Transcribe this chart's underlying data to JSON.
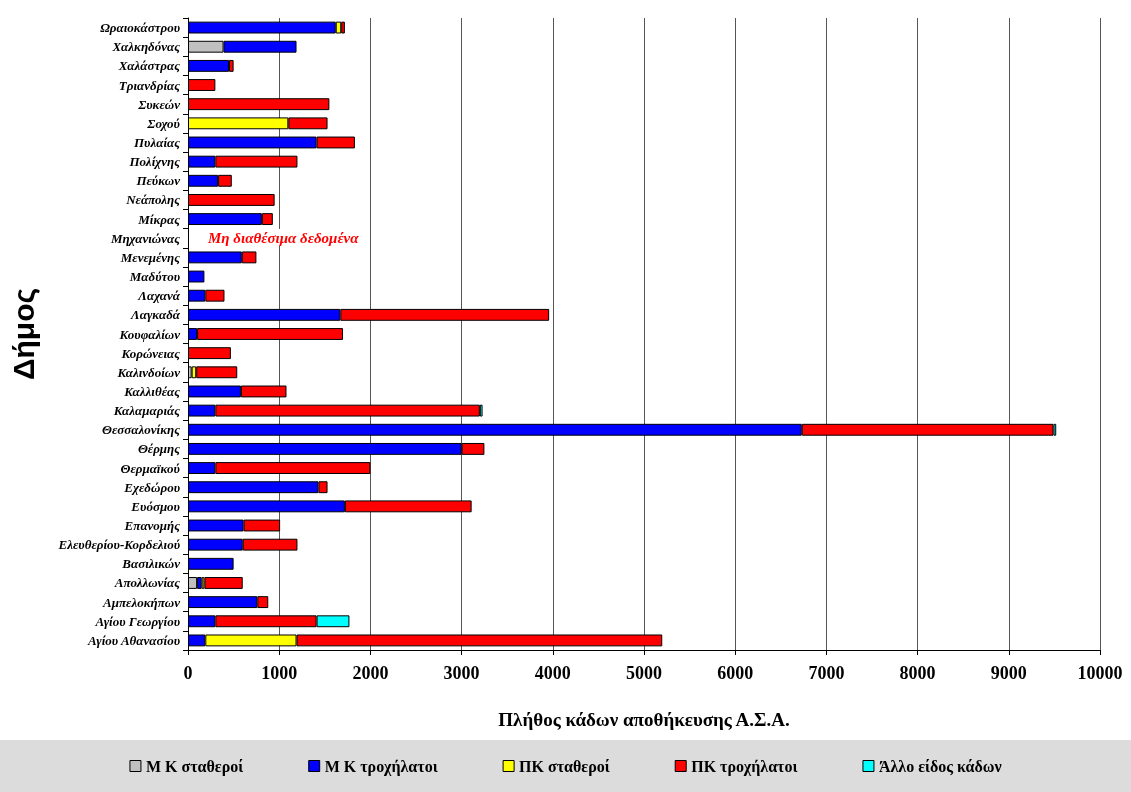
{
  "chart_data": {
    "type": "bar",
    "orientation": "horizontal",
    "stacked": true,
    "xlabel": "Πλήθος κάδων αποθήκευσης Α.Σ.Α.",
    "ylabel": "Δήμος",
    "categories": [
      "Ωραιοκάστρου",
      "Χαλκηδόνας",
      "Χαλάστρας",
      "Τριανδρίας",
      "Συκεών",
      "Σοχού",
      "Πυλαίας",
      "Πολίχνης",
      "Πεύκων",
      "Νεάπολης",
      "Μίκρας",
      "Μηχανιώνας",
      "Μενεμένης",
      "Μαδύτου",
      "Λαχανά",
      "Λαγκαδά",
      "Κουφαλίων",
      "Κορώνειας",
      "Καλινδοίων",
      "Καλλιθέας",
      "Καλαμαριάς",
      "Θεσσαλονίκης",
      "Θέρμης",
      "Θερμαϊκού",
      "Εχεδώρου",
      "Ευόσμου",
      "Επανομής",
      "Ελευθερίου-Κορδελιού",
      "Βασιλικών",
      "Απολλωνίας",
      "Αμπελοκήπων",
      "Αγίου Γεωργίου",
      "Αγίου Αθανασίου"
    ],
    "series": [
      {
        "name": "Μ Κ σταθεροί",
        "color": "#c0c0c0",
        "values": [
          null,
          390,
          null,
          null,
          null,
          null,
          null,
          null,
          null,
          null,
          null,
          null,
          null,
          null,
          null,
          null,
          null,
          null,
          40,
          null,
          null,
          null,
          null,
          null,
          null,
          null,
          null,
          null,
          null,
          100,
          null,
          null,
          null
        ]
      },
      {
        "name": "Μ Κ τροχήλατοι",
        "color": "#0000ff",
        "values": [
          1620,
          800,
          450,
          null,
          null,
          null,
          1410,
          300,
          330,
          null,
          810,
          null,
          590,
          180,
          190,
          1670,
          100,
          null,
          null,
          580,
          300,
          6730,
          3000,
          300,
          1430,
          1720,
          610,
          600,
          500,
          50,
          760,
          300,
          190
        ]
      },
      {
        "name": "ΠΚ σταθεροί",
        "color": "#ffff00",
        "values": [
          60,
          null,
          null,
          null,
          null,
          1100,
          null,
          null,
          null,
          null,
          null,
          null,
          null,
          null,
          null,
          null,
          null,
          null,
          50,
          null,
          null,
          null,
          null,
          null,
          null,
          null,
          null,
          null,
          null,
          30,
          null,
          null,
          1000
        ]
      },
      {
        "name": "ΠΚ τροχήλατοι",
        "color": "#ff0000",
        "values": [
          40,
          null,
          50,
          300,
          1550,
          430,
          420,
          900,
          150,
          950,
          120,
          null,
          160,
          null,
          210,
          2290,
          1600,
          470,
          450,
          500,
          2900,
          2760,
          250,
          1700,
          100,
          1390,
          400,
          600,
          null,
          420,
          120,
          1110,
          4010
        ]
      },
      {
        "name": "Άλλο είδος κάδων",
        "color": "#00ffff",
        "values": [
          null,
          null,
          null,
          null,
          null,
          null,
          null,
          null,
          null,
          null,
          null,
          null,
          null,
          null,
          null,
          null,
          null,
          null,
          null,
          null,
          30,
          30,
          null,
          null,
          null,
          null,
          null,
          null,
          null,
          null,
          null,
          360,
          null
        ]
      }
    ],
    "xlim": [
      0,
      10000
    ],
    "xticks": [
      0,
      1000,
      2000,
      3000,
      4000,
      5000,
      6000,
      7000,
      8000,
      9000,
      10000
    ],
    "grid": "x",
    "legend": "bottom",
    "annotations": [
      "Μη διαθέσιμα δεδομένα"
    ]
  }
}
